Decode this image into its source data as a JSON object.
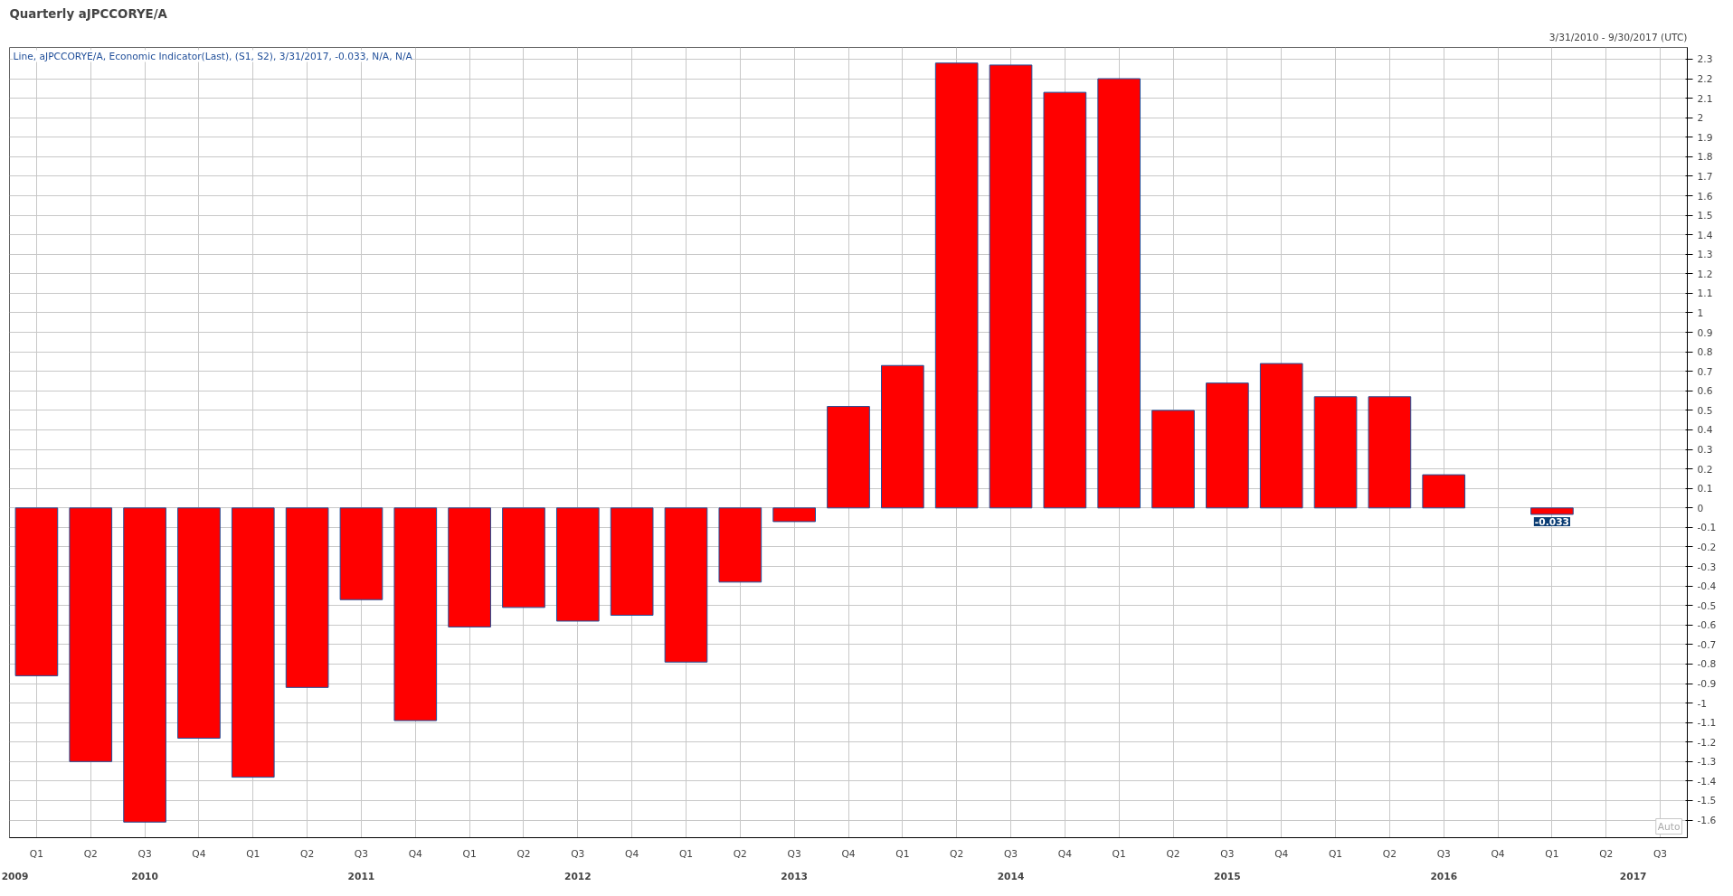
{
  "chart_data": {
    "type": "bar",
    "title": "Quarterly aJPCCORYE/A",
    "subtitle": "Line, aJPCCORYE/A, Economic Indicator(Last), (S1, S2), 3/31/2017, -0.033, N/A, N/A",
    "categories": [
      "Q1",
      "Q2",
      "Q3",
      "Q4",
      "Q1",
      "Q2",
      "Q3",
      "Q4",
      "Q1",
      "Q2",
      "Q3",
      "Q4",
      "Q1",
      "Q2",
      "Q3",
      "Q4",
      "Q1",
      "Q2",
      "Q3",
      "Q4",
      "Q1",
      "Q2",
      "Q3",
      "Q4",
      "Q1",
      "Q2",
      "Q3",
      "Q4",
      "Q1",
      "Q2",
      "Q3"
    ],
    "values": [
      -0.86,
      -1.3,
      -1.61,
      -1.18,
      -1.38,
      -0.92,
      -0.47,
      -1.09,
      -0.61,
      -0.51,
      -0.58,
      -0.55,
      -0.79,
      -0.38,
      -0.07,
      0.52,
      0.73,
      2.28,
      2.27,
      2.13,
      2.2,
      0.5,
      0.64,
      0.74,
      0.57,
      0.57,
      0.17,
      null,
      -0.033,
      null,
      null
    ],
    "color": "#ff0000",
    "ylim": [
      -1.69,
      2.36
    ],
    "yticks": [
      -1.6,
      -1.5,
      -1.4,
      -1.3,
      -1.2,
      -1.1,
      -1,
      -0.9,
      -0.8,
      -0.7,
      -0.6,
      -0.5,
      -0.4,
      -0.3,
      -0.2,
      -0.1,
      0,
      0.1,
      0.2,
      0.3,
      0.4,
      0.5,
      0.6,
      0.7,
      0.8,
      0.9,
      1,
      1.1,
      1.2,
      1.3,
      1.4,
      1.5,
      1.6,
      1.7,
      1.8,
      1.9,
      2,
      2.1,
      2.2,
      2.3
    ],
    "grid": true,
    "value_labels": [
      null,
      null,
      null,
      null,
      null,
      null,
      null,
      null,
      null,
      null,
      null,
      null,
      null,
      null,
      null,
      null,
      null,
      null,
      null,
      null,
      null,
      null,
      null,
      null,
      null,
      null,
      null,
      null,
      "-0.033",
      null,
      null
    ],
    "annotations": [
      "3/31/2010 - 9/30/2017 (UTC)",
      "2009",
      "2010",
      "2011",
      "2012",
      "2013",
      "2014",
      "2015",
      "2016",
      "2017",
      "Auto"
    ]
  }
}
